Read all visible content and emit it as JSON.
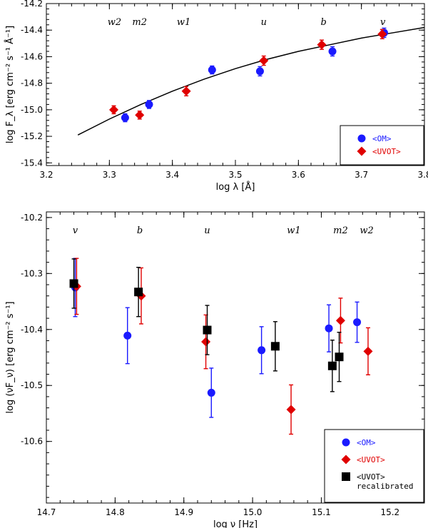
{
  "colors": {
    "om": "#1a1aff",
    "uvot": "#e00000",
    "recal": "#000000"
  },
  "chart_data": [
    {
      "type": "scatter",
      "xlabel": "log λ [Å]",
      "ylabel": "log F_λ [erg cm⁻² s⁻¹ Å⁻¹]",
      "xlim": [
        3.2,
        3.8
      ],
      "ylim": [
        -15.42,
        -14.2
      ],
      "xticks": [
        "3.2",
        "3.3",
        "3.4",
        "3.5",
        "3.6",
        "3.7",
        "3.8"
      ],
      "yticks": [
        "-15.4",
        "-15.2",
        "-15.0",
        "-14.8",
        "-14.6",
        "-14.4",
        "-14.2"
      ],
      "band_labels": [
        {
          "text": "w2",
          "x": 3.308
        },
        {
          "text": "m2",
          "x": 3.348
        },
        {
          "text": "w1",
          "x": 3.418
        },
        {
          "text": "u",
          "x": 3.545
        },
        {
          "text": "b",
          "x": 3.64
        },
        {
          "text": "v",
          "x": 3.734
        }
      ],
      "series": [
        {
          "name": "<OM>",
          "marker": "circle",
          "color_key": "om",
          "points": [
            {
              "x": 3.325,
              "y": -15.06,
              "err": 0.03
            },
            {
              "x": 3.363,
              "y": -14.96,
              "err": 0.03
            },
            {
              "x": 3.463,
              "y": -14.7,
              "err": 0.03
            },
            {
              "x": 3.539,
              "y": -14.71,
              "err": 0.035
            },
            {
              "x": 3.654,
              "y": -14.56,
              "err": 0.035
            },
            {
              "x": 3.736,
              "y": -14.42,
              "err": 0.035
            }
          ]
        },
        {
          "name": "<UVOT>",
          "marker": "diamond",
          "color_key": "uvot",
          "points": [
            {
              "x": 3.307,
              "y": -15.0,
              "err": 0.03
            },
            {
              "x": 3.348,
              "y": -15.04,
              "err": 0.03
            },
            {
              "x": 3.422,
              "y": -14.86,
              "err": 0.035
            },
            {
              "x": 3.545,
              "y": -14.63,
              "err": 0.035
            },
            {
              "x": 3.637,
              "y": -14.51,
              "err": 0.035
            },
            {
              "x": 3.733,
              "y": -14.43,
              "err": 0.035
            }
          ]
        }
      ],
      "fit_curve": {
        "x": [
          3.25,
          3.3,
          3.35,
          3.4,
          3.45,
          3.5,
          3.55,
          3.6,
          3.65,
          3.7,
          3.75,
          3.8
        ],
        "y": [
          -15.19,
          -15.07,
          -14.96,
          -14.86,
          -14.77,
          -14.69,
          -14.62,
          -14.56,
          -14.51,
          -14.46,
          -14.42,
          -14.38
        ]
      },
      "legend": [
        {
          "label": "<OM>",
          "marker": "circle",
          "color_key": "om"
        },
        {
          "label": "<UVOT>",
          "marker": "diamond",
          "color_key": "uvot"
        }
      ],
      "legend_position": "bottom-right",
      "grid": false
    },
    {
      "type": "scatter",
      "xlabel": "log ν [Hz]",
      "ylabel": "log (νF_ν) [erg cm⁻² s⁻¹]",
      "xlim": [
        14.7,
        15.25
      ],
      "ylim": [
        -10.71,
        -10.19
      ],
      "xticks": [
        "14.7",
        "14.8",
        "14.9",
        "15.0",
        "15.1",
        "15.2"
      ],
      "yticks": [
        "-10.6",
        "-10.5",
        "-10.4",
        "-10.3",
        "-10.2"
      ],
      "band_labels": [
        {
          "text": "v",
          "x": 14.742
        },
        {
          "text": "b",
          "x": 14.836
        },
        {
          "text": "u",
          "x": 14.934
        },
        {
          "text": "w1",
          "x": 15.06
        },
        {
          "text": "m2",
          "x": 15.128
        },
        {
          "text": "w2",
          "x": 15.166
        }
      ],
      "series": [
        {
          "name": "<OM>",
          "marker": "circle",
          "color_key": "om",
          "points": [
            {
              "x": 14.742,
              "y": -10.325,
              "err": 0.052
            },
            {
              "x": 14.818,
              "y": -10.411,
              "err": 0.05
            },
            {
              "x": 14.94,
              "y": -10.513,
              "err": 0.044
            },
            {
              "x": 15.013,
              "y": -10.437,
              "err": 0.042
            },
            {
              "x": 15.111,
              "y": -10.398,
              "err": 0.042
            },
            {
              "x": 15.152,
              "y": -10.387,
              "err": 0.036
            }
          ]
        },
        {
          "name": "<UVOT>",
          "marker": "diamond",
          "color_key": "uvot",
          "points": [
            {
              "x": 14.744,
              "y": -10.323,
              "err": 0.05
            },
            {
              "x": 14.838,
              "y": -10.34,
              "err": 0.05
            },
            {
              "x": 14.932,
              "y": -10.422,
              "err": 0.048
            },
            {
              "x": 15.056,
              "y": -10.543,
              "err": 0.044
            },
            {
              "x": 15.128,
              "y": -10.384,
              "err": 0.04
            },
            {
              "x": 15.168,
              "y": -10.439,
              "err": 0.042
            }
          ]
        },
        {
          "name": "<UVOT> recalibrated",
          "marker": "square",
          "color_key": "recal",
          "points": [
            {
              "x": 14.74,
              "y": -10.318,
              "err": 0.044
            },
            {
              "x": 14.834,
              "y": -10.333,
              "err": 0.044
            },
            {
              "x": 14.934,
              "y": -10.401,
              "err": 0.044
            },
            {
              "x": 15.033,
              "y": -10.43,
              "err": 0.044
            },
            {
              "x": 15.116,
              "y": -10.465,
              "err": 0.046
            },
            {
              "x": 15.126,
              "y": -10.449,
              "err": 0.044
            }
          ]
        }
      ],
      "legend": [
        {
          "label": "<OM>",
          "marker": "circle",
          "color_key": "om"
        },
        {
          "label": "<UVOT>",
          "marker": "diamond",
          "color_key": "uvot"
        },
        {
          "label": "<UVOT>",
          "label2": "recalibrated",
          "marker": "square",
          "color_key": "recal"
        }
      ],
      "legend_position": "bottom-right",
      "grid": false
    }
  ]
}
